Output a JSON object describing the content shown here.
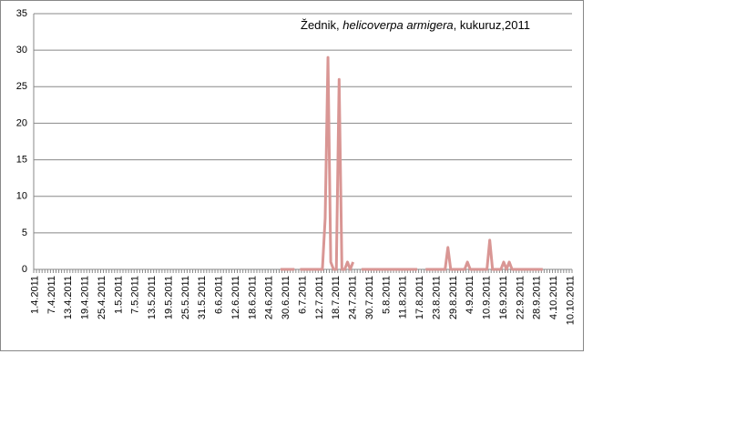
{
  "chart_data": {
    "type": "line",
    "title": [
      "Žednik, ",
      "helicoverpa armigera",
      ", kukuruz,2011"
    ],
    "categories": [
      "1.4.2011",
      null,
      null,
      null,
      null,
      null,
      "7.4.2011",
      null,
      null,
      null,
      null,
      null,
      "13.4.2011",
      null,
      null,
      null,
      null,
      null,
      "19.4.2011",
      null,
      null,
      null,
      null,
      null,
      "25.4.2011",
      null,
      null,
      null,
      null,
      null,
      "1.5.2011",
      null,
      null,
      null,
      null,
      null,
      "7.5.2011",
      null,
      null,
      null,
      null,
      null,
      "13.5.2011",
      null,
      null,
      null,
      null,
      null,
      "19.5.2011",
      null,
      null,
      null,
      null,
      null,
      "25.5.2011",
      null,
      null,
      null,
      null,
      null,
      "31.5.2011",
      null,
      null,
      null,
      null,
      null,
      "6.6.2011",
      null,
      null,
      null,
      null,
      null,
      "12.6.2011",
      null,
      null,
      null,
      null,
      null,
      "18.6.2011",
      null,
      null,
      null,
      null,
      null,
      "24.6.2011",
      null,
      null,
      null,
      null,
      null,
      "30.6.2011",
      null,
      null,
      null,
      null,
      null,
      "6.7.2011",
      null,
      null,
      null,
      null,
      null,
      "12.7.2011",
      null,
      null,
      null,
      null,
      null,
      "18.7.2011",
      null,
      null,
      null,
      null,
      null,
      "24.7.2011",
      null,
      null,
      null,
      null,
      null,
      "30.7.2011",
      null,
      null,
      null,
      null,
      null,
      "5.8.2011",
      null,
      null,
      null,
      null,
      null,
      "11.8.2011",
      null,
      null,
      null,
      null,
      null,
      "17.8.2011",
      null,
      null,
      null,
      null,
      null,
      "23.8.2011",
      null,
      null,
      null,
      null,
      null,
      "29.8.2011",
      null,
      null,
      null,
      null,
      null,
      "4.9.2011",
      null,
      null,
      null,
      null,
      null,
      "10.9.2011",
      null,
      null,
      null,
      null,
      null,
      "16.9.2011",
      null,
      null,
      null,
      null,
      null,
      "22.9.2011",
      null,
      null,
      null,
      null,
      null,
      "28.9.2011",
      null,
      null,
      null,
      null,
      null,
      "4.10.2011",
      null,
      null,
      null,
      null,
      null,
      "10.10.2011"
    ],
    "values": [
      null,
      null,
      null,
      null,
      null,
      null,
      null,
      null,
      null,
      null,
      null,
      null,
      null,
      null,
      null,
      null,
      null,
      null,
      null,
      null,
      null,
      null,
      null,
      null,
      null,
      null,
      null,
      null,
      null,
      null,
      null,
      null,
      null,
      null,
      null,
      null,
      null,
      null,
      null,
      null,
      null,
      null,
      null,
      null,
      null,
      null,
      null,
      null,
      null,
      null,
      null,
      null,
      null,
      null,
      null,
      null,
      null,
      null,
      null,
      null,
      null,
      null,
      null,
      null,
      null,
      null,
      null,
      null,
      null,
      null,
      null,
      null,
      null,
      null,
      null,
      null,
      null,
      null,
      null,
      null,
      null,
      null,
      null,
      null,
      null,
      null,
      null,
      null,
      0,
      0,
      0,
      0,
      0,
      0,
      null,
      0,
      0,
      0,
      0,
      0,
      0,
      0,
      0,
      0,
      7,
      29,
      1,
      0,
      0,
      26,
      0,
      0,
      1,
      0,
      1,
      null,
      null,
      0,
      0,
      0,
      0,
      0,
      0,
      0,
      0,
      0,
      0,
      0,
      0,
      0,
      0,
      0,
      0,
      0,
      0,
      0,
      0,
      0,
      null,
      null,
      0,
      0,
      0,
      0,
      0,
      0,
      0,
      0,
      3,
      0,
      0,
      0,
      0,
      0,
      0,
      1,
      0,
      0,
      0,
      0,
      0,
      0,
      0,
      4,
      0,
      0,
      0,
      0,
      1,
      0,
      1,
      0,
      0,
      0,
      0,
      0,
      0,
      0,
      0,
      0,
      0,
      0,
      0,
      null,
      null,
      null,
      null,
      null,
      null,
      null,
      null,
      null,
      null
    ],
    "color": "#d99694",
    "ylim": [
      0,
      35
    ],
    "yticks": [
      0,
      5,
      10,
      15,
      20,
      25,
      30,
      35
    ],
    "grid": true
  }
}
